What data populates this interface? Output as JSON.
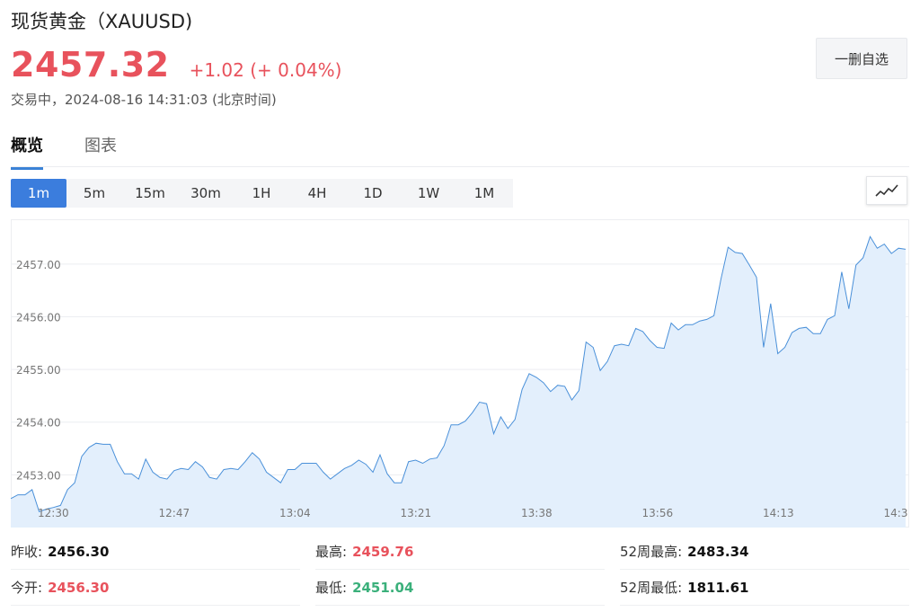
{
  "header": {
    "title": "现货黄金（XAUUSD)",
    "price": "2457.32",
    "change": "+1.02 (+ 0.04%)",
    "status": "交易中，2024-08-16 14:31:03 (北京时间)",
    "watch_button": "一删自选"
  },
  "tabs": [
    {
      "label": "概览",
      "active": true
    },
    {
      "label": "图表",
      "active": false
    }
  ],
  "ranges": [
    "1m",
    "5m",
    "15m",
    "30m",
    "1H",
    "4H",
    "1D",
    "1W",
    "1M"
  ],
  "active_range": "1m",
  "icons": {
    "chart_type": "line-chart-icon"
  },
  "colors": {
    "up": "#e8525c",
    "down": "#3bb07b",
    "line": "#4a90d9",
    "area": "#e3effc",
    "accent": "#3b7ddd"
  },
  "stats": [
    {
      "label": "昨收:",
      "value": "2456.30",
      "tone": "dark"
    },
    {
      "label": "最高:",
      "value": "2459.76",
      "tone": "red"
    },
    {
      "label": "52周最高:",
      "value": "2483.34",
      "tone": "dark"
    },
    {
      "label": "今开:",
      "value": "2456.30",
      "tone": "red"
    },
    {
      "label": "最低:",
      "value": "2451.04",
      "tone": "green"
    },
    {
      "label": "52周最低:",
      "value": "1811.61",
      "tone": "dark"
    }
  ],
  "chart_data": {
    "type": "area",
    "x_ticks": [
      "12:30",
      "12:47",
      "13:04",
      "13:21",
      "13:38",
      "13:56",
      "14:13",
      "14:3"
    ],
    "y_ticks": [
      "2453.00",
      "2454.00",
      "2455.00",
      "2456.00",
      "2457.00"
    ],
    "ylim": [
      2452.0,
      2457.85
    ],
    "grid": true,
    "values": [
      2452.55,
      2452.62,
      2452.62,
      2452.72,
      2452.3,
      2452.35,
      2452.38,
      2452.42,
      2452.72,
      2452.85,
      2453.35,
      2453.52,
      2453.6,
      2453.58,
      2453.58,
      2453.25,
      2453.02,
      2453.02,
      2452.92,
      2453.3,
      2453.05,
      2452.95,
      2452.92,
      2453.08,
      2453.12,
      2453.1,
      2453.25,
      2453.15,
      2452.95,
      2452.92,
      2453.1,
      2453.12,
      2453.1,
      2453.25,
      2453.42,
      2453.3,
      2453.05,
      2452.95,
      2452.85,
      2453.1,
      2453.1,
      2453.22,
      2453.22,
      2453.22,
      2453.05,
      2452.92,
      2453.02,
      2453.12,
      2453.18,
      2453.28,
      2453.2,
      2453.05,
      2453.38,
      2453.02,
      2452.85,
      2452.85,
      2453.25,
      2453.28,
      2453.22,
      2453.3,
      2453.32,
      2453.55,
      2453.95,
      2453.95,
      2454.02,
      2454.18,
      2454.38,
      2454.35,
      2453.78,
      2454.1,
      2453.88,
      2454.05,
      2454.62,
      2454.92,
      2454.85,
      2454.75,
      2454.58,
      2454.7,
      2454.68,
      2454.42,
      2454.6,
      2455.52,
      2455.42,
      2454.98,
      2455.15,
      2455.45,
      2455.48,
      2455.45,
      2455.78,
      2455.72,
      2455.55,
      2455.42,
      2455.4,
      2455.88,
      2455.75,
      2455.85,
      2455.85,
      2455.92,
      2455.95,
      2456.02,
      2456.72,
      2457.32,
      2457.22,
      2457.2,
      2456.98,
      2456.75,
      2455.42,
      2456.25,
      2455.3,
      2455.42,
      2455.7,
      2455.78,
      2455.8,
      2455.68,
      2455.68,
      2455.95,
      2456.02,
      2456.85,
      2456.15,
      2456.98,
      2457.12,
      2457.52,
      2457.3,
      2457.38,
      2457.2,
      2457.3,
      2457.28
    ]
  }
}
